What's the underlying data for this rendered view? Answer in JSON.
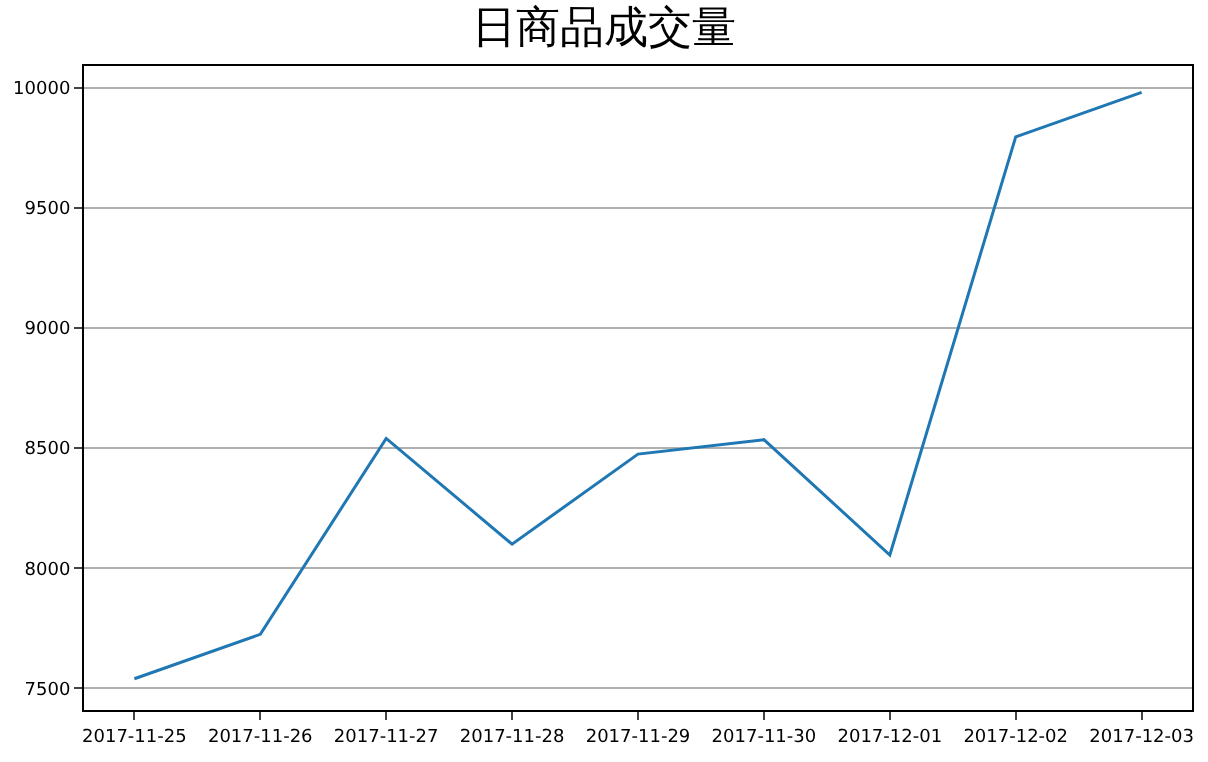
{
  "chart_data": {
    "type": "line",
    "title": "日商品成交量",
    "categories": [
      "2017-11-25",
      "2017-11-26",
      "2017-11-27",
      "2017-11-28",
      "2017-11-29",
      "2017-11-30",
      "2017-12-01",
      "2017-12-02",
      "2017-12-03"
    ],
    "series": [
      {
        "color": "#1f77b4",
        "values": [
          7540,
          7725,
          8540,
          8100,
          8475,
          8535,
          8055,
          9795,
          9980
        ]
      }
    ],
    "ylim": [
      7410,
      10090
    ],
    "yticks": [
      7500,
      8000,
      8500,
      9000,
      9500,
      10000
    ],
    "grid": "y",
    "marker": "none",
    "line_style": "solid"
  }
}
